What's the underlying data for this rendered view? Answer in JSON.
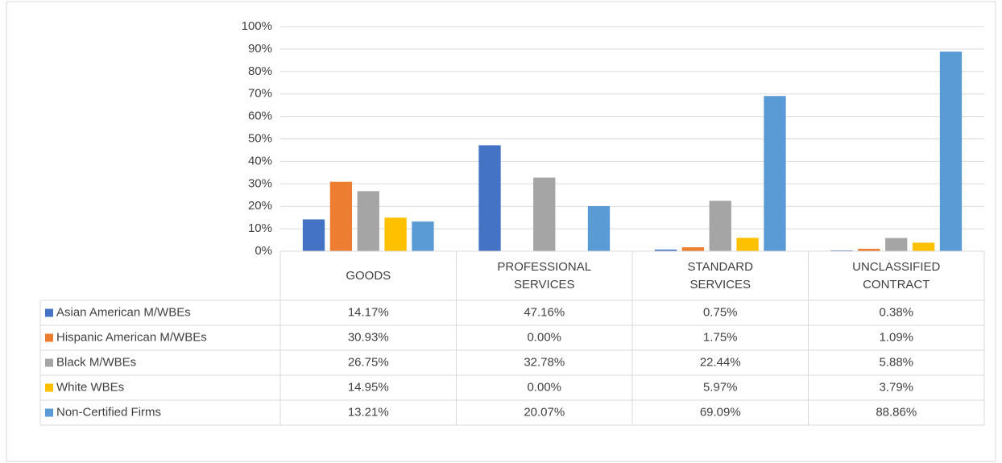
{
  "chart_data": {
    "type": "bar",
    "categories": [
      "GOODS",
      "PROFESSIONAL SERVICES",
      "STANDARD SERVICES",
      "UNCLASSIFIED CONTRACT"
    ],
    "series": [
      {
        "name": "Asian American M/WBEs",
        "color": "#4472c4",
        "values": [
          14.17,
          47.16,
          0.75,
          0.38
        ],
        "value_labels": [
          "14.17%",
          "47.16%",
          "0.75%",
          "0.38%"
        ]
      },
      {
        "name": "Hispanic American M/WBEs",
        "color": "#ed7d31",
        "values": [
          30.93,
          0.0,
          1.75,
          1.09
        ],
        "value_labels": [
          "30.93%",
          "0.00%",
          "1.75%",
          "1.09%"
        ]
      },
      {
        "name": "Black M/WBEs",
        "color": "#a5a5a5",
        "values": [
          26.75,
          32.78,
          22.44,
          5.88
        ],
        "value_labels": [
          "26.75%",
          "32.78%",
          "22.44%",
          "5.88%"
        ]
      },
      {
        "name": "White WBEs",
        "color": "#ffc000",
        "values": [
          14.95,
          0.0,
          5.97,
          3.79
        ],
        "value_labels": [
          "14.95%",
          "0.00%",
          "5.97%",
          "3.79%"
        ]
      },
      {
        "name": "Non-Certified Firms",
        "color": "#5b9bd5",
        "values": [
          13.21,
          20.07,
          69.09,
          88.86
        ],
        "value_labels": [
          "13.21%",
          "20.07%",
          "69.09%",
          "88.86%"
        ]
      }
    ],
    "ylim": [
      0,
      100
    ],
    "yticks": [
      {
        "value": 0,
        "label": "0%"
      },
      {
        "value": 10,
        "label": "10%"
      },
      {
        "value": 20,
        "label": "20%"
      },
      {
        "value": 30,
        "label": "30%"
      },
      {
        "value": 40,
        "label": "40%"
      },
      {
        "value": 50,
        "label": "50%"
      },
      {
        "value": 60,
        "label": "60%"
      },
      {
        "value": 70,
        "label": "70%"
      },
      {
        "value": 80,
        "label": "80%"
      },
      {
        "value": 90,
        "label": "90%"
      },
      {
        "value": 100,
        "label": "100%"
      }
    ],
    "grid": true
  }
}
